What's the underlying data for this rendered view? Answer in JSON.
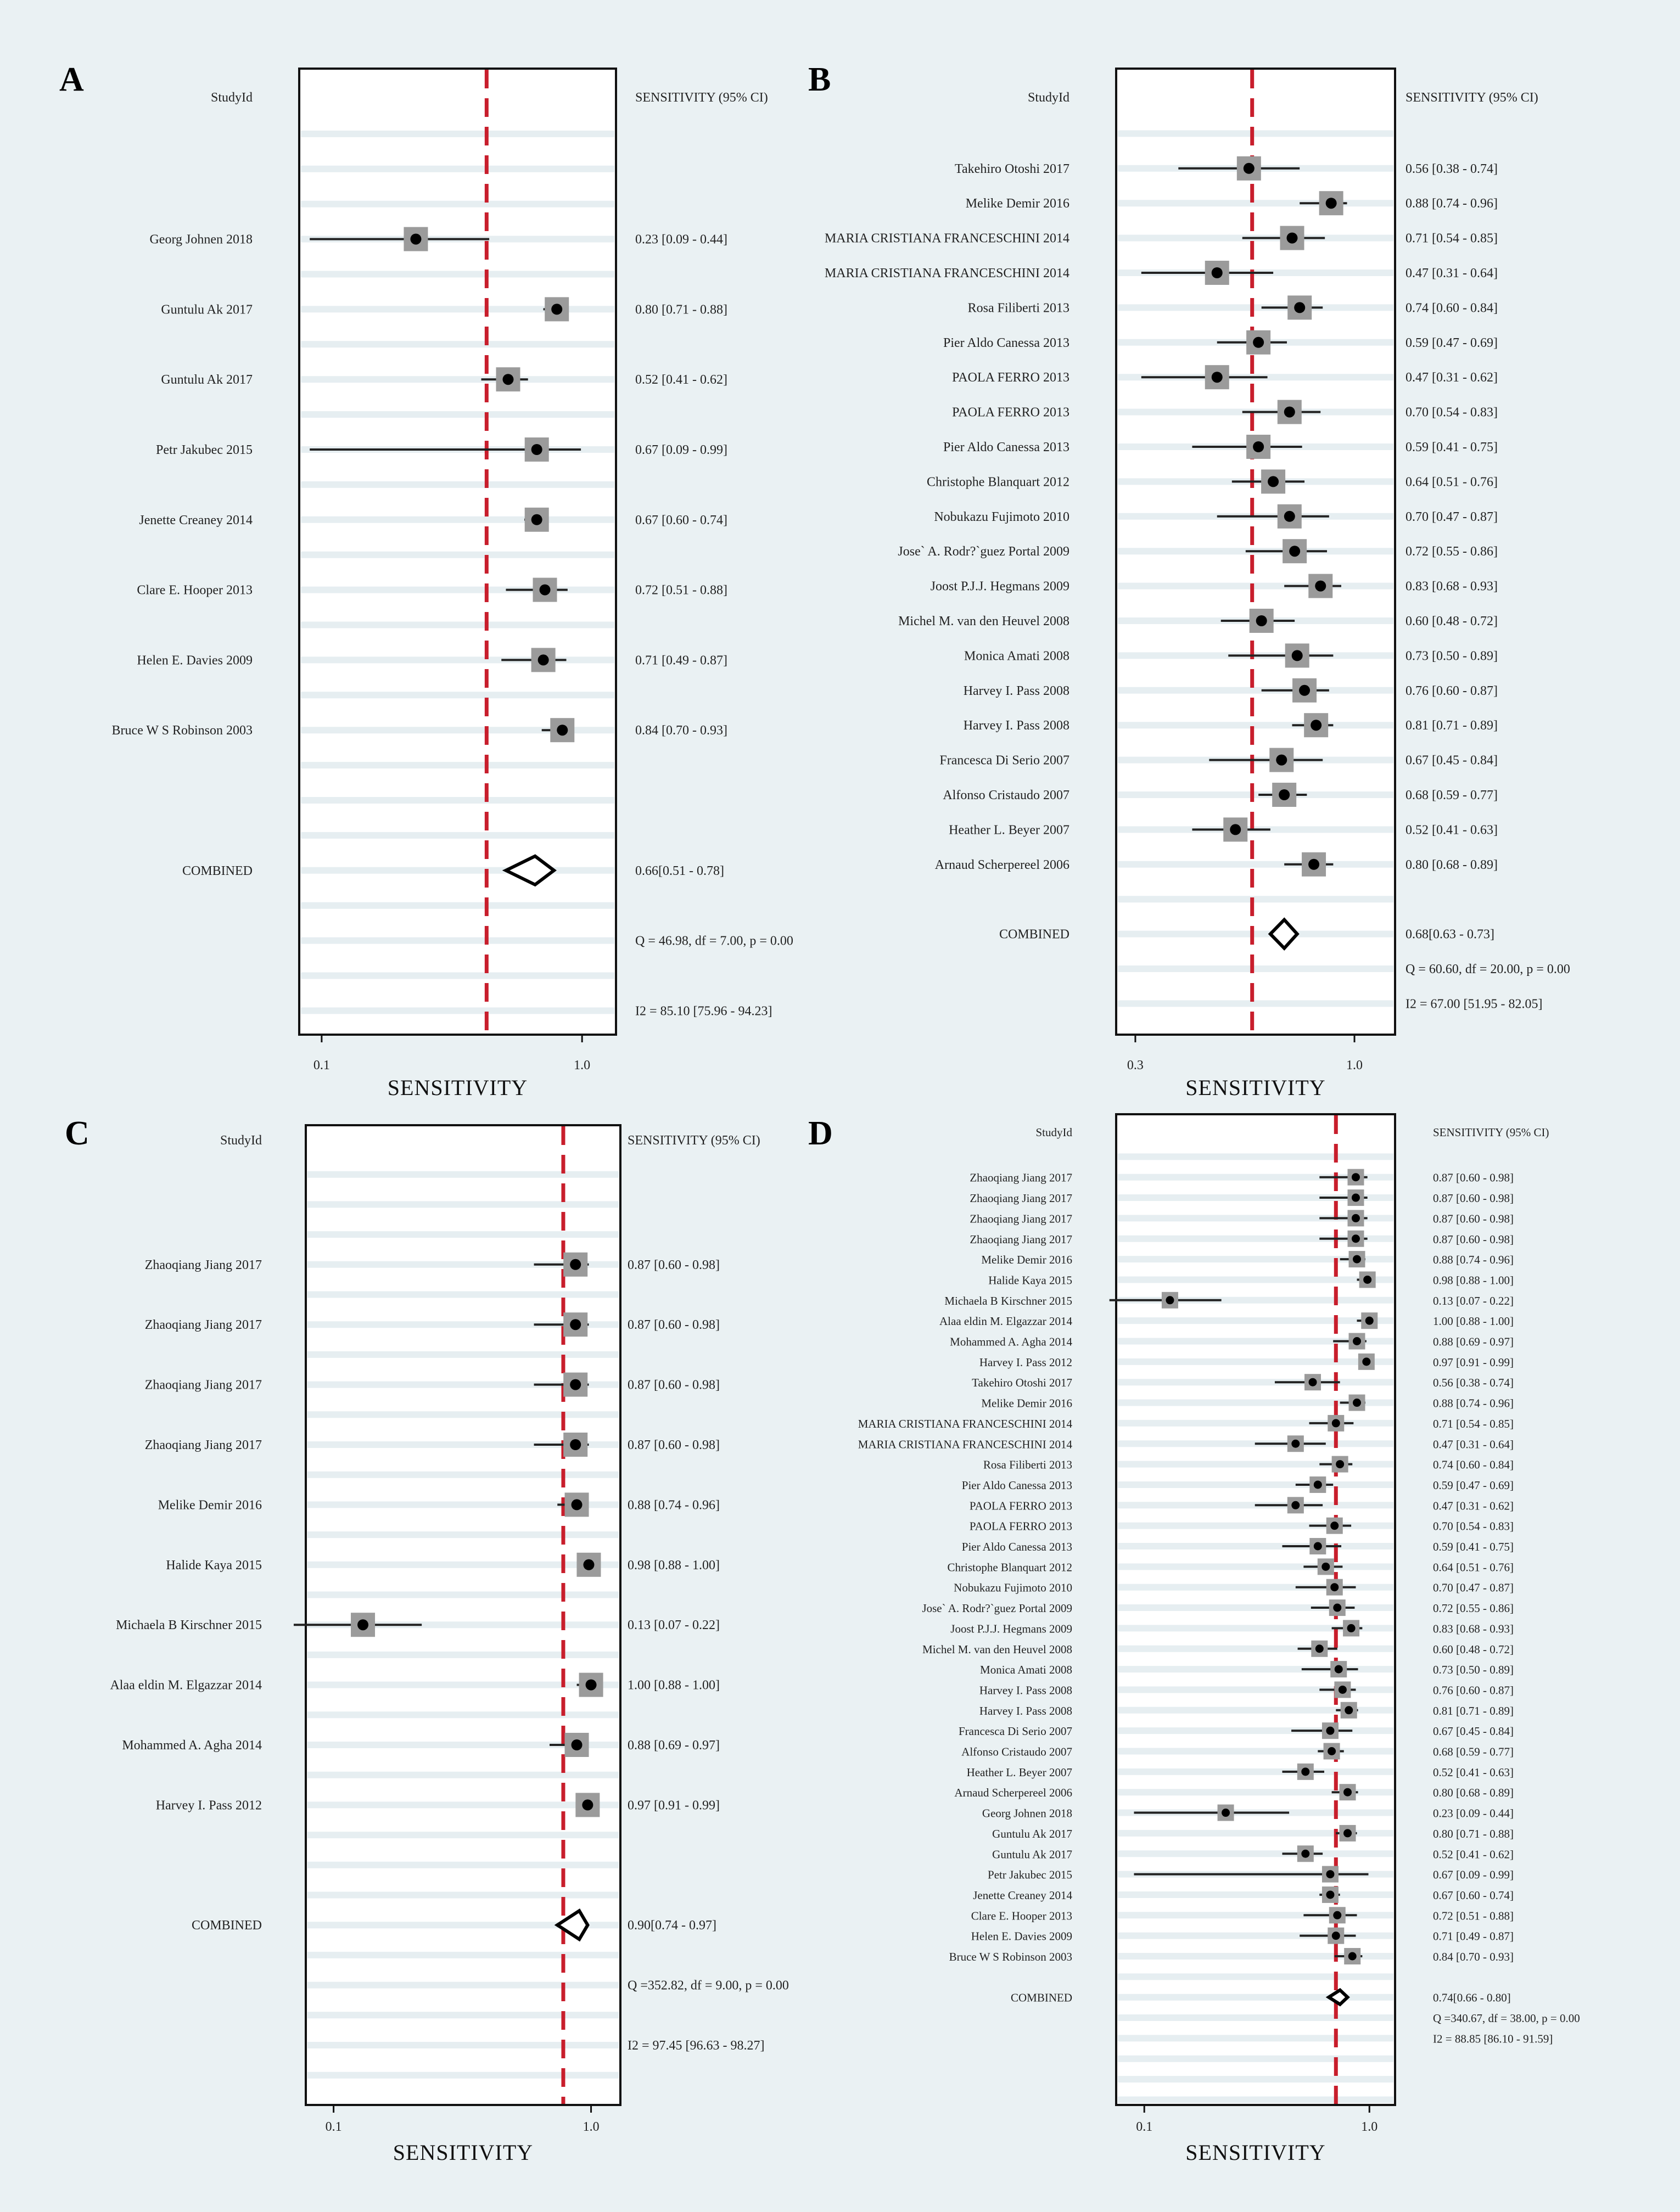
{
  "chart_data": [
    {
      "type": "forest",
      "panel": "A",
      "col_header_study": "StudyId",
      "col_header_value": "SENSITIVITY (95% CI)",
      "xlabel": "SENSITIVITY",
      "x_scale": "log",
      "xlim": [
        0.082,
        1.35
      ],
      "ref_line": 0.43,
      "ticks": [
        {
          "value": 0.1,
          "label": "0.1"
        },
        {
          "value": 1.0,
          "label": "1.0"
        }
      ],
      "studies": [
        {
          "name": "Georg Johnen  2018",
          "est": 0.23,
          "lo": 0.09,
          "hi": 0.44,
          "label": "0.23 [0.09 - 0.44]",
          "row": 4
        },
        {
          "name": "Guntulu Ak  2017",
          "est": 0.8,
          "lo": 0.71,
          "hi": 0.88,
          "label": "0.80 [0.71 - 0.88]",
          "row": 6
        },
        {
          "name": "Guntulu Ak  2017",
          "est": 0.52,
          "lo": 0.41,
          "hi": 0.62,
          "label": "0.52 [0.41 - 0.62]",
          "row": 8
        },
        {
          "name": "Petr Jakubec  2015",
          "est": 0.67,
          "lo": 0.09,
          "hi": 0.99,
          "label": "0.67 [0.09 - 0.99]",
          "row": 10
        },
        {
          "name": "Jenette Creaney  2014",
          "est": 0.67,
          "lo": 0.6,
          "hi": 0.74,
          "label": "0.67 [0.60 - 0.74]",
          "row": 12
        },
        {
          "name": "Clare E. Hooper  2013",
          "est": 0.72,
          "lo": 0.51,
          "hi": 0.88,
          "label": "0.72 [0.51 - 0.88]",
          "row": 14
        },
        {
          "name": "Helen E. Davies  2009",
          "est": 0.71,
          "lo": 0.49,
          "hi": 0.87,
          "label": "0.71 [0.49 - 0.87]",
          "row": 16
        },
        {
          "name": "Bruce W S Robinson  2003",
          "est": 0.84,
          "lo": 0.7,
          "hi": 0.93,
          "label": "0.84 [0.70 - 0.93]",
          "row": 18
        }
      ],
      "combined": {
        "name": "COMBINED",
        "est": 0.66,
        "lo": 0.51,
        "hi": 0.78,
        "label": "0.66[0.51 - 0.78]",
        "row": 22
      },
      "stats": [
        {
          "text": "Q = 46.98, df = 7.00, p =  0.00",
          "row": 24
        },
        {
          "text": "I2 = 85.10 [75.96 - 94.23]",
          "row": 26
        }
      ]
    },
    {
      "type": "forest",
      "panel": "B",
      "col_header_study": "StudyId",
      "col_header_value": "SENSITIVITY (95% CI)",
      "xlabel": "SENSITIVITY",
      "x_scale": "log",
      "xlim": [
        0.27,
        1.25
      ],
      "ref_line": 0.57,
      "ticks": [
        {
          "value": 0.3,
          "label": "0.3"
        },
        {
          "value": 1.0,
          "label": "1.0"
        }
      ],
      "studies": [
        {
          "name": "Takehiro Otoshi  2017",
          "est": 0.56,
          "lo": 0.38,
          "hi": 0.74,
          "label": "0.56 [0.38 - 0.74]",
          "row": 2
        },
        {
          "name": "Melike Demir  2016",
          "est": 0.88,
          "lo": 0.74,
          "hi": 0.96,
          "label": "0.88 [0.74 - 0.96]",
          "row": 3
        },
        {
          "name": "MARIA CRISTIANA FRANCESCHINI  2014",
          "est": 0.71,
          "lo": 0.54,
          "hi": 0.85,
          "label": "0.71 [0.54 - 0.85]",
          "row": 4
        },
        {
          "name": "MARIA CRISTIANA FRANCESCHINI  2014",
          "est": 0.47,
          "lo": 0.31,
          "hi": 0.64,
          "label": "0.47 [0.31 - 0.64]",
          "row": 5
        },
        {
          "name": "Rosa Filiberti  2013",
          "est": 0.74,
          "lo": 0.6,
          "hi": 0.84,
          "label": "0.74 [0.60 - 0.84]",
          "row": 6
        },
        {
          "name": "Pier Aldo Canessa  2013",
          "est": 0.59,
          "lo": 0.47,
          "hi": 0.69,
          "label": "0.59 [0.47 - 0.69]",
          "row": 7
        },
        {
          "name": "PAOLA FERRO  2013",
          "est": 0.47,
          "lo": 0.31,
          "hi": 0.62,
          "label": "0.47 [0.31 - 0.62]",
          "row": 8
        },
        {
          "name": "PAOLA FERRO  2013",
          "est": 0.7,
          "lo": 0.54,
          "hi": 0.83,
          "label": "0.70 [0.54 - 0.83]",
          "row": 9
        },
        {
          "name": "Pier Aldo Canessa  2013",
          "est": 0.59,
          "lo": 0.41,
          "hi": 0.75,
          "label": "0.59 [0.41 - 0.75]",
          "row": 10
        },
        {
          "name": "Christophe Blanquart  2012",
          "est": 0.64,
          "lo": 0.51,
          "hi": 0.76,
          "label": "0.64 [0.51 - 0.76]",
          "row": 11
        },
        {
          "name": "Nobukazu Fujimoto  2010",
          "est": 0.7,
          "lo": 0.47,
          "hi": 0.87,
          "label": "0.70 [0.47 - 0.87]",
          "row": 12
        },
        {
          "name": "Jose` A. Rodr?`guez Portal  2009",
          "est": 0.72,
          "lo": 0.55,
          "hi": 0.86,
          "label": "0.72 [0.55 - 0.86]",
          "row": 13
        },
        {
          "name": "Joost P.J.J. Hegmans  2009",
          "est": 0.83,
          "lo": 0.68,
          "hi": 0.93,
          "label": "0.83 [0.68 - 0.93]",
          "row": 14
        },
        {
          "name": "Michel M. van den Heuvel  2008",
          "est": 0.6,
          "lo": 0.48,
          "hi": 0.72,
          "label": "0.60 [0.48 - 0.72]",
          "row": 15
        },
        {
          "name": "Monica Amati  2008",
          "est": 0.73,
          "lo": 0.5,
          "hi": 0.89,
          "label": "0.73 [0.50 - 0.89]",
          "row": 16
        },
        {
          "name": "Harvey I. Pass  2008",
          "est": 0.76,
          "lo": 0.6,
          "hi": 0.87,
          "label": "0.76 [0.60 - 0.87]",
          "row": 17
        },
        {
          "name": "Harvey I. Pass  2008",
          "est": 0.81,
          "lo": 0.71,
          "hi": 0.89,
          "label": "0.81 [0.71 - 0.89]",
          "row": 18
        },
        {
          "name": "Francesca Di Serio  2007",
          "est": 0.67,
          "lo": 0.45,
          "hi": 0.84,
          "label": "0.67 [0.45 - 0.84]",
          "row": 19
        },
        {
          "name": "Alfonso Cristaudo  2007",
          "est": 0.68,
          "lo": 0.59,
          "hi": 0.77,
          "label": "0.68 [0.59 - 0.77]",
          "row": 20
        },
        {
          "name": "Heather L. Beyer  2007",
          "est": 0.52,
          "lo": 0.41,
          "hi": 0.63,
          "label": "0.52 [0.41 - 0.63]",
          "row": 21
        },
        {
          "name": "Arnaud Scherpereel  2006",
          "est": 0.8,
          "lo": 0.68,
          "hi": 0.89,
          "label": "0.80 [0.68 - 0.89]",
          "row": 22
        }
      ],
      "combined": {
        "name": "COMBINED",
        "est": 0.68,
        "lo": 0.63,
        "hi": 0.73,
        "label": "0.68[0.63 - 0.73]",
        "row": 24
      },
      "stats": [
        {
          "text": "Q = 60.60, df = 20.00, p =  0.00",
          "row": 25
        },
        {
          "text": "I2 = 67.00 [51.95 - 82.05]",
          "row": 26
        }
      ]
    },
    {
      "type": "forest",
      "panel": "C",
      "col_header_study": "StudyId",
      "col_header_value": "SENSITIVITY (95% CI)",
      "xlabel": "SENSITIVITY",
      "x_scale": "log",
      "xlim": [
        0.078,
        1.3
      ],
      "ref_line": 0.78,
      "ticks": [
        {
          "value": 0.1,
          "label": "0.1"
        },
        {
          "value": 1.0,
          "label": "1.0"
        }
      ],
      "studies": [
        {
          "name": "Zhaoqiang Jiang  2017",
          "est": 0.87,
          "lo": 0.6,
          "hi": 0.98,
          "label": "0.87 [0.60 - 0.98]",
          "row": 4
        },
        {
          "name": "Zhaoqiang Jiang  2017",
          "est": 0.87,
          "lo": 0.6,
          "hi": 0.98,
          "label": "0.87 [0.60 - 0.98]",
          "row": 6
        },
        {
          "name": "Zhaoqiang Jiang  2017",
          "est": 0.87,
          "lo": 0.6,
          "hi": 0.98,
          "label": "0.87 [0.60 - 0.98]",
          "row": 8
        },
        {
          "name": "Zhaoqiang Jiang  2017",
          "est": 0.87,
          "lo": 0.6,
          "hi": 0.98,
          "label": "0.87 [0.60 - 0.98]",
          "row": 10
        },
        {
          "name": "Melike Demir  2016",
          "est": 0.88,
          "lo": 0.74,
          "hi": 0.96,
          "label": "0.88 [0.74 - 0.96]",
          "row": 12
        },
        {
          "name": "Halide Kaya  2015",
          "est": 0.98,
          "lo": 0.88,
          "hi": 1.0,
          "label": "0.98 [0.88 - 1.00]",
          "row": 14
        },
        {
          "name": "Michaela B Kirschner  2015",
          "est": 0.13,
          "lo": 0.07,
          "hi": 0.22,
          "label": "0.13 [0.07 - 0.22]",
          "row": 16
        },
        {
          "name": "Alaa eldin M. Elgazzar  2014",
          "est": 1.0,
          "lo": 0.88,
          "hi": 1.0,
          "label": "1.00 [0.88 - 1.00]",
          "row": 18
        },
        {
          "name": "Mohammed A. Agha  2014",
          "est": 0.88,
          "lo": 0.69,
          "hi": 0.97,
          "label": "0.88 [0.69 - 0.97]",
          "row": 20
        },
        {
          "name": "Harvey I. Pass  2012",
          "est": 0.97,
          "lo": 0.91,
          "hi": 0.99,
          "label": "0.97 [0.91 - 0.99]",
          "row": 22
        }
      ],
      "combined": {
        "name": "COMBINED",
        "est": 0.9,
        "lo": 0.74,
        "hi": 0.97,
        "label": "0.90[0.74 - 0.97]",
        "row": 26
      },
      "stats": [
        {
          "text": "Q =352.82, df = 9.00, p =  0.00",
          "row": 28
        },
        {
          "text": "I2 = 97.45 [96.63 - 98.27]",
          "row": 30
        }
      ]
    },
    {
      "type": "forest",
      "panel": "D",
      "col_header_study": "StudyId",
      "col_header_value": "SENSITIVITY (95% CI)",
      "xlabel": "SENSITIVITY",
      "x_scale": "log",
      "xlim": [
        0.075,
        1.3
      ],
      "ref_line": 0.71,
      "ticks": [
        {
          "value": 0.1,
          "label": "0.1"
        },
        {
          "value": 1.0,
          "label": "1.0"
        }
      ],
      "studies": [
        {
          "name": "Zhaoqiang Jiang  2017",
          "est": 0.87,
          "lo": 0.6,
          "hi": 0.98,
          "label": "0.87 [0.60 - 0.98]",
          "row": 2
        },
        {
          "name": "Zhaoqiang Jiang  2017",
          "est": 0.87,
          "lo": 0.6,
          "hi": 0.98,
          "label": "0.87 [0.60 - 0.98]",
          "row": 3
        },
        {
          "name": "Zhaoqiang Jiang  2017",
          "est": 0.87,
          "lo": 0.6,
          "hi": 0.98,
          "label": "0.87 [0.60 - 0.98]",
          "row": 4
        },
        {
          "name": "Zhaoqiang Jiang  2017",
          "est": 0.87,
          "lo": 0.6,
          "hi": 0.98,
          "label": "0.87 [0.60 - 0.98]",
          "row": 5
        },
        {
          "name": "Melike Demir  2016",
          "est": 0.88,
          "lo": 0.74,
          "hi": 0.96,
          "label": "0.88 [0.74 - 0.96]",
          "row": 6
        },
        {
          "name": "Halide Kaya  2015",
          "est": 0.98,
          "lo": 0.88,
          "hi": 1.0,
          "label": "0.98 [0.88 - 1.00]",
          "row": 7
        },
        {
          "name": "Michaela B Kirschner  2015",
          "est": 0.13,
          "lo": 0.07,
          "hi": 0.22,
          "label": "0.13 [0.07 - 0.22]",
          "row": 8
        },
        {
          "name": "Alaa eldin M. Elgazzar  2014",
          "est": 1.0,
          "lo": 0.88,
          "hi": 1.0,
          "label": "1.00 [0.88 - 1.00]",
          "row": 9
        },
        {
          "name": "Mohammed A. Agha  2014",
          "est": 0.88,
          "lo": 0.69,
          "hi": 0.97,
          "label": "0.88 [0.69 - 0.97]",
          "row": 10
        },
        {
          "name": "Harvey I. Pass  2012",
          "est": 0.97,
          "lo": 0.91,
          "hi": 0.99,
          "label": "0.97 [0.91 - 0.99]",
          "row": 11
        },
        {
          "name": "Takehiro Otoshi  2017",
          "est": 0.56,
          "lo": 0.38,
          "hi": 0.74,
          "label": "0.56 [0.38 - 0.74]",
          "row": 12
        },
        {
          "name": "Melike Demir  2016",
          "est": 0.88,
          "lo": 0.74,
          "hi": 0.96,
          "label": "0.88 [0.74 - 0.96]",
          "row": 13
        },
        {
          "name": "MARIA CRISTIANA FRANCESCHINI  2014",
          "est": 0.71,
          "lo": 0.54,
          "hi": 0.85,
          "label": "0.71 [0.54 - 0.85]",
          "row": 14
        },
        {
          "name": "MARIA CRISTIANA FRANCESCHINI  2014",
          "est": 0.47,
          "lo": 0.31,
          "hi": 0.64,
          "label": "0.47 [0.31 - 0.64]",
          "row": 15
        },
        {
          "name": "Rosa Filiberti  2013",
          "est": 0.74,
          "lo": 0.6,
          "hi": 0.84,
          "label": "0.74 [0.60 - 0.84]",
          "row": 16
        },
        {
          "name": "Pier Aldo Canessa  2013",
          "est": 0.59,
          "lo": 0.47,
          "hi": 0.69,
          "label": "0.59 [0.47 - 0.69]",
          "row": 17
        },
        {
          "name": "PAOLA FERRO  2013",
          "est": 0.47,
          "lo": 0.31,
          "hi": 0.62,
          "label": "0.47 [0.31 - 0.62]",
          "row": 18
        },
        {
          "name": "PAOLA FERRO  2013",
          "est": 0.7,
          "lo": 0.54,
          "hi": 0.83,
          "label": "0.70 [0.54 - 0.83]",
          "row": 19
        },
        {
          "name": "Pier Aldo Canessa  2013",
          "est": 0.59,
          "lo": 0.41,
          "hi": 0.75,
          "label": "0.59 [0.41 - 0.75]",
          "row": 20
        },
        {
          "name": "Christophe Blanquart  2012",
          "est": 0.64,
          "lo": 0.51,
          "hi": 0.76,
          "label": "0.64 [0.51 - 0.76]",
          "row": 21
        },
        {
          "name": "Nobukazu Fujimoto  2010",
          "est": 0.7,
          "lo": 0.47,
          "hi": 0.87,
          "label": "0.70 [0.47 - 0.87]",
          "row": 22
        },
        {
          "name": "Jose` A. Rodr?`guez Portal  2009",
          "est": 0.72,
          "lo": 0.55,
          "hi": 0.86,
          "label": "0.72 [0.55 - 0.86]",
          "row": 23
        },
        {
          "name": "Joost P.J.J. Hegmans  2009",
          "est": 0.83,
          "lo": 0.68,
          "hi": 0.93,
          "label": "0.83 [0.68 - 0.93]",
          "row": 24
        },
        {
          "name": "Michel M. van den Heuvel  2008",
          "est": 0.6,
          "lo": 0.48,
          "hi": 0.72,
          "label": "0.60 [0.48 - 0.72]",
          "row": 25
        },
        {
          "name": "Monica Amati  2008",
          "est": 0.73,
          "lo": 0.5,
          "hi": 0.89,
          "label": "0.73 [0.50 - 0.89]",
          "row": 26
        },
        {
          "name": "Harvey I. Pass  2008",
          "est": 0.76,
          "lo": 0.6,
          "hi": 0.87,
          "label": "0.76 [0.60 - 0.87]",
          "row": 27
        },
        {
          "name": "Harvey I. Pass  2008",
          "est": 0.81,
          "lo": 0.71,
          "hi": 0.89,
          "label": "0.81 [0.71 - 0.89]",
          "row": 28
        },
        {
          "name": "Francesca Di Serio  2007",
          "est": 0.67,
          "lo": 0.45,
          "hi": 0.84,
          "label": "0.67 [0.45 - 0.84]",
          "row": 29
        },
        {
          "name": "Alfonso Cristaudo  2007",
          "est": 0.68,
          "lo": 0.59,
          "hi": 0.77,
          "label": "0.68 [0.59 - 0.77]",
          "row": 30
        },
        {
          "name": "Heather L. Beyer  2007",
          "est": 0.52,
          "lo": 0.41,
          "hi": 0.63,
          "label": "0.52 [0.41 - 0.63]",
          "row": 31
        },
        {
          "name": "Arnaud Scherpereel  2006",
          "est": 0.8,
          "lo": 0.68,
          "hi": 0.89,
          "label": "0.80 [0.68 - 0.89]",
          "row": 32
        },
        {
          "name": "Georg Johnen  2018",
          "est": 0.23,
          "lo": 0.09,
          "hi": 0.44,
          "label": "0.23 [0.09 - 0.44]",
          "row": 33
        },
        {
          "name": "Guntulu Ak  2017",
          "est": 0.8,
          "lo": 0.71,
          "hi": 0.88,
          "label": "0.80 [0.71 - 0.88]",
          "row": 34
        },
        {
          "name": "Guntulu Ak  2017",
          "est": 0.52,
          "lo": 0.41,
          "hi": 0.62,
          "label": "0.52 [0.41 - 0.62]",
          "row": 35
        },
        {
          "name": "Petr Jakubec  2015",
          "est": 0.67,
          "lo": 0.09,
          "hi": 0.99,
          "label": "0.67 [0.09 - 0.99]",
          "row": 36
        },
        {
          "name": "Jenette Creaney  2014",
          "est": 0.67,
          "lo": 0.6,
          "hi": 0.74,
          "label": "0.67 [0.60 - 0.74]",
          "row": 37
        },
        {
          "name": "Clare E. Hooper  2013",
          "est": 0.72,
          "lo": 0.51,
          "hi": 0.88,
          "label": "0.72 [0.51 - 0.88]",
          "row": 38
        },
        {
          "name": "Helen E. Davies  2009",
          "est": 0.71,
          "lo": 0.49,
          "hi": 0.87,
          "label": "0.71 [0.49 - 0.87]",
          "row": 39
        },
        {
          "name": "Bruce W S Robinson  2003",
          "est": 0.84,
          "lo": 0.7,
          "hi": 0.93,
          "label": "0.84 [0.70 - 0.93]",
          "row": 40
        }
      ],
      "combined": {
        "name": "COMBINED",
        "est": 0.74,
        "lo": 0.66,
        "hi": 0.8,
        "label": "0.74[0.66 - 0.80]",
        "row": 42
      },
      "stats": [
        {
          "text": "Q =340.67, df = 38.00, p =  0.00",
          "row": 43
        },
        {
          "text": "I2 = 88.85 [86.10 - 91.59]",
          "row": 44
        }
      ]
    }
  ]
}
